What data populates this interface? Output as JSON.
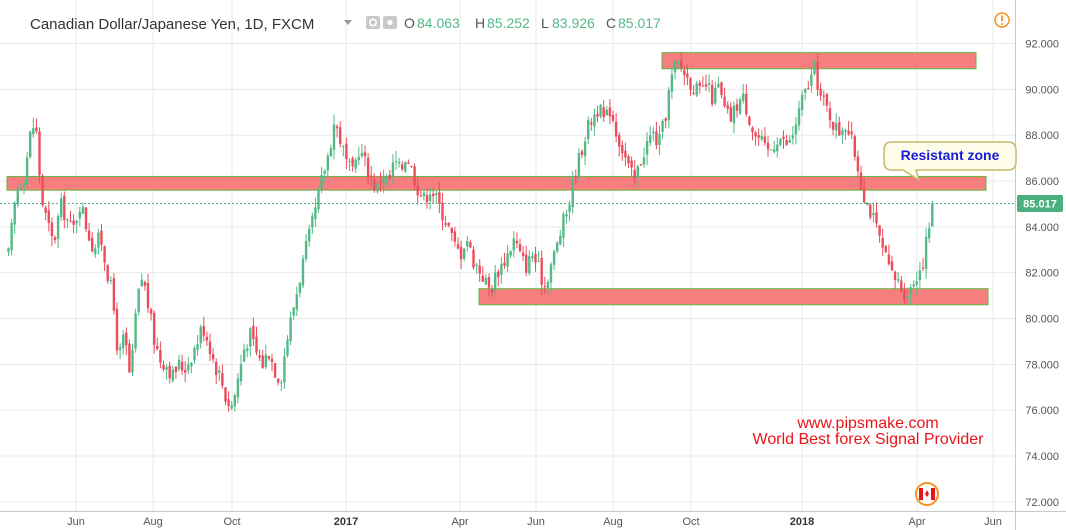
{
  "header": {
    "symbol_title": "Canadian Dollar/Japanese Yen, 1D, FXCM",
    "open_label": "O",
    "open_value": "84.063",
    "high_label": "H",
    "high_value": "85.252",
    "low_label": "L",
    "low_value": "83.926",
    "close_label": "C",
    "close_value": "85.017"
  },
  "colors": {
    "up": "#53b987",
    "down": "#eb4d5c",
    "zone_fill": "#f77e7e",
    "zone_border": "#5fb83e",
    "callout_border": "#c9b96a",
    "callout_fill": "#fefdea",
    "price_label_bg": "#4bb07f",
    "grid": "#e9e9e9"
  },
  "price_label": "85.017",
  "annotations": {
    "callout": "Resistant zone",
    "watermark_line1": "www.pipsmake.com",
    "watermark_line2": "World Best forex Signal Provider"
  },
  "icons": [
    "settings-icon",
    "eye-icon",
    "dropdown-arrow-icon",
    "alert-icon",
    "canada-flag-icon"
  ],
  "chart_data": {
    "type": "candlestick",
    "title": "Canadian Dollar/Japanese Yen, 1D, FXCM",
    "y_ticks": [
      "72.000",
      "74.000",
      "76.000",
      "78.000",
      "80.000",
      "82.000",
      "84.000",
      "86.000",
      "88.000",
      "90.000",
      "92.000"
    ],
    "ylim": [
      71.6,
      93.9
    ],
    "x_ticks": [
      {
        "label": "Jun",
        "bold": false
      },
      {
        "label": "Aug",
        "bold": false
      },
      {
        "label": "Oct",
        "bold": false
      },
      {
        "label": "2017",
        "bold": true
      },
      {
        "label": "Apr",
        "bold": false
      },
      {
        "label": "Jun",
        "bold": false
      },
      {
        "label": "Aug",
        "bold": false
      },
      {
        "label": "Oct",
        "bold": false
      },
      {
        "label": "2018",
        "bold": true
      },
      {
        "label": "Apr",
        "bold": false
      },
      {
        "label": "Jun",
        "bold": false
      }
    ],
    "last_close": 85.017,
    "zones": [
      {
        "name": "top",
        "low": 90.9,
        "high": 91.6
      },
      {
        "name": "resistance",
        "low": 85.6,
        "high": 86.2
      },
      {
        "name": "support",
        "low": 80.6,
        "high": 81.3
      }
    ],
    "close_path": [
      [
        0,
        82.8
      ],
      [
        8,
        85.6
      ],
      [
        16,
        86.3
      ],
      [
        22,
        88.1
      ],
      [
        27,
        88.6
      ],
      [
        33,
        85.2
      ],
      [
        40,
        84.0
      ],
      [
        45,
        83.2
      ],
      [
        52,
        85.0
      ],
      [
        58,
        84.4
      ],
      [
        64,
        83.8
      ],
      [
        72,
        85.1
      ],
      [
        78,
        84.0
      ],
      [
        85,
        83.0
      ],
      [
        92,
        83.6
      ],
      [
        98,
        82.2
      ],
      [
        104,
        81.0
      ],
      [
        110,
        78.2
      ],
      [
        116,
        79.3
      ],
      [
        122,
        77.2
      ],
      [
        128,
        80.6
      ],
      [
        134,
        81.9
      ],
      [
        140,
        80.5
      ],
      [
        146,
        79.0
      ],
      [
        152,
        78.2
      ],
      [
        158,
        78.0
      ],
      [
        164,
        77.5
      ],
      [
        170,
        78.0
      ],
      [
        176,
        77.8
      ],
      [
        182,
        78.3
      ],
      [
        188,
        78.9
      ],
      [
        194,
        79.7
      ],
      [
        200,
        79.0
      ],
      [
        206,
        78.0
      ],
      [
        212,
        77.5
      ],
      [
        218,
        76.4
      ],
      [
        224,
        76.2
      ],
      [
        230,
        77.5
      ],
      [
        236,
        78.8
      ],
      [
        242,
        79.3
      ],
      [
        248,
        78.5
      ],
      [
        254,
        78.0
      ],
      [
        260,
        78.6
      ],
      [
        266,
        77.8
      ],
      [
        272,
        77.3
      ],
      [
        278,
        79.0
      ],
      [
        284,
        80.3
      ],
      [
        290,
        81.5
      ],
      [
        296,
        82.8
      ],
      [
        302,
        83.8
      ],
      [
        308,
        84.9
      ],
      [
        314,
        86.2
      ],
      [
        320,
        87.2
      ],
      [
        326,
        88.6
      ],
      [
        332,
        87.8
      ],
      [
        338,
        86.8
      ],
      [
        344,
        86.3
      ],
      [
        350,
        87.4
      ],
      [
        356,
        86.9
      ],
      [
        362,
        86.2
      ],
      [
        368,
        85.6
      ],
      [
        374,
        86.4
      ],
      [
        380,
        85.9
      ],
      [
        386,
        86.9
      ],
      [
        392,
        86.4
      ],
      [
        398,
        87.2
      ],
      [
        404,
        86.4
      ],
      [
        410,
        85.6
      ],
      [
        416,
        85.2
      ],
      [
        422,
        85.7
      ],
      [
        428,
        85.2
      ],
      [
        434,
        84.6
      ],
      [
        440,
        84.0
      ],
      [
        446,
        83.2
      ],
      [
        452,
        82.8
      ],
      [
        458,
        83.6
      ],
      [
        464,
        82.6
      ],
      [
        470,
        82.2
      ],
      [
        476,
        81.7
      ],
      [
        482,
        81.2
      ],
      [
        488,
        82.0
      ],
      [
        494,
        82.4
      ],
      [
        500,
        82.9
      ],
      [
        506,
        83.5
      ],
      [
        512,
        82.7
      ],
      [
        518,
        82.3
      ],
      [
        524,
        82.8
      ],
      [
        530,
        82.2
      ],
      [
        536,
        81.4
      ],
      [
        542,
        82.3
      ],
      [
        548,
        83.1
      ],
      [
        554,
        84.1
      ],
      [
        560,
        84.9
      ],
      [
        566,
        86.3
      ],
      [
        572,
        87.2
      ],
      [
        578,
        88.2
      ],
      [
        584,
        88.8
      ],
      [
        590,
        89.2
      ],
      [
        596,
        88.6
      ],
      [
        602,
        89.2
      ],
      [
        608,
        88.1
      ],
      [
        614,
        87.4
      ],
      [
        620,
        86.6
      ],
      [
        626,
        86.0
      ],
      [
        632,
        86.9
      ],
      [
        638,
        87.6
      ],
      [
        644,
        88.1
      ],
      [
        650,
        87.6
      ],
      [
        656,
        88.6
      ],
      [
        662,
        90.3
      ],
      [
        668,
        91.2
      ],
      [
        674,
        90.9
      ],
      [
        680,
        90.4
      ],
      [
        686,
        90.1
      ],
      [
        692,
        89.8
      ],
      [
        698,
        90.2
      ],
      [
        704,
        89.6
      ],
      [
        710,
        90.1
      ],
      [
        716,
        89.1
      ],
      [
        722,
        88.7
      ],
      [
        728,
        89.3
      ],
      [
        734,
        89.7
      ],
      [
        740,
        88.9
      ],
      [
        746,
        88.0
      ],
      [
        752,
        87.8
      ],
      [
        758,
        87.2
      ],
      [
        764,
        87.5
      ],
      [
        770,
        88.0
      ],
      [
        776,
        87.6
      ],
      [
        782,
        87.7
      ],
      [
        788,
        88.6
      ],
      [
        794,
        89.6
      ],
      [
        800,
        90.2
      ],
      [
        806,
        90.9
      ],
      [
        812,
        89.7
      ],
      [
        818,
        89.2
      ],
      [
        824,
        88.6
      ],
      [
        830,
        88.1
      ],
      [
        836,
        88.6
      ],
      [
        842,
        87.9
      ],
      [
        848,
        86.9
      ],
      [
        854,
        85.6
      ],
      [
        860,
        84.9
      ],
      [
        866,
        84.2
      ],
      [
        872,
        83.3
      ],
      [
        878,
        82.5
      ],
      [
        884,
        81.8
      ],
      [
        890,
        81.6
      ],
      [
        896,
        81.1
      ],
      [
        902,
        81.3
      ],
      [
        908,
        81.9
      ],
      [
        914,
        82.4
      ],
      [
        920,
        83.9
      ],
      [
        926,
        85.0
      ]
    ]
  }
}
